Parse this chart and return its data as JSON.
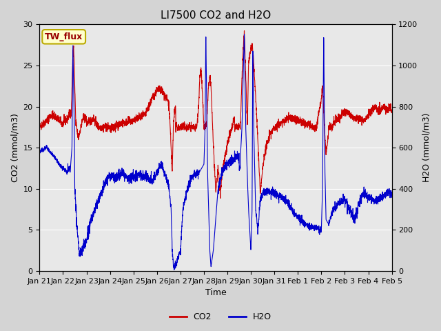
{
  "title": "LI7500 CO2 and H2O",
  "xlabel": "Time",
  "ylabel_left": "CO2 (mmol/m3)",
  "ylabel_right": "H2O (mmol/m3)",
  "xlim": [
    0,
    15
  ],
  "ylim_left": [
    0,
    30
  ],
  "ylim_right": [
    0,
    1200
  ],
  "xtick_labels": [
    "Jan 21",
    "Jan 22",
    "Jan 23",
    "Jan 24",
    "Jan 25",
    "Jan 26",
    "Jan 27",
    "Jan 28",
    "Jan 29",
    "Jan 30",
    "Jan 31",
    "Feb 1",
    "Feb 2",
    "Feb 3",
    "Feb 4",
    "Feb 5"
  ],
  "xtick_positions": [
    0,
    1,
    2,
    3,
    4,
    5,
    6,
    7,
    8,
    9,
    10,
    11,
    12,
    13,
    14,
    15
  ],
  "legend_labels": [
    "CO2",
    "H2O"
  ],
  "box_label": "TW_flux",
  "box_facecolor": "#ffffcc",
  "box_edgecolor": "#bbaa00",
  "fig_facecolor": "#d4d4d4",
  "axes_facecolor": "#e8e8e8",
  "co2_color": "#cc0000",
  "h2o_color": "#0000cc",
  "co2_linewidth": 0.8,
  "h2o_linewidth": 0.8,
  "title_fontsize": 11,
  "label_fontsize": 9,
  "tick_fontsize": 8,
  "legend_fontsize": 9
}
